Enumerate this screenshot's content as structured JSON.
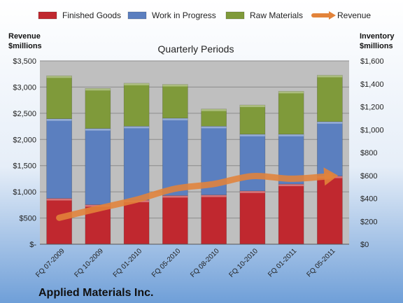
{
  "chart_data": {
    "type": "bar",
    "title": "Quarterly Periods",
    "footer_title": "Applied Materials Inc.",
    "categories": [
      "FQ 07-2009",
      "FQ 10-2009",
      "FQ 01-2010",
      "FQ 05-2010",
      "FQ 08-2010",
      "FQ 10-2010",
      "FQ 01-2011",
      "FQ 05-2011"
    ],
    "stacked": true,
    "series": [
      {
        "name": "Finished Goods",
        "axis": "right",
        "color": "#c0282f",
        "values": [
          400,
          345,
          385,
          425,
          430,
          465,
          525,
          595
        ]
      },
      {
        "name": "Work in Progress",
        "axis": "right",
        "color": "#5b7fbf",
        "values": [
          695,
          665,
          645,
          675,
          600,
          495,
          435,
          475
        ]
      },
      {
        "name": "Raw Materials",
        "axis": "right",
        "color": "#7f9a3a",
        "values": [
          375,
          350,
          375,
          295,
          150,
          255,
          375,
          405
        ]
      },
      {
        "name": "Revenue",
        "type": "line",
        "axis": "left",
        "color": "#e2833a",
        "values": [
          505,
          680,
          850,
          1060,
          1150,
          1300,
          1250,
          1300
        ]
      }
    ],
    "y_left": {
      "label_line1": "Revenue",
      "label_line2": "$millions",
      "range": [
        0,
        3500
      ],
      "tick_labels": [
        "$-",
        "$500",
        "$1,000",
        "$1,500",
        "$2,000",
        "$2,500",
        "$3,000",
        "$3,500"
      ]
    },
    "y_right": {
      "label_line1": "Inventory",
      "label_line2": "$millions",
      "range": [
        0,
        1600
      ],
      "tick_labels": [
        "$0",
        "$200",
        "$400",
        "$600",
        "$800",
        "$1,000",
        "$1,200",
        "$1,400",
        "$1,600"
      ]
    },
    "legend_position": "top",
    "grid": true,
    "colors": {
      "plot_background": "#bfbfbf",
      "gridline": "#8c8c8c",
      "panel_top": "#ffffff",
      "panel_bottom": "#7aa6dd"
    }
  }
}
